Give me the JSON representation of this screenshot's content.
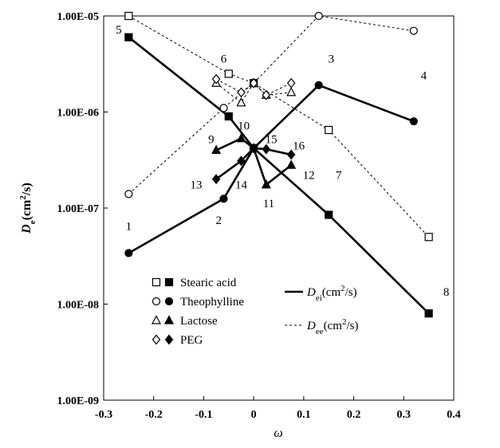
{
  "chart_data": {
    "type": "line",
    "title": "",
    "xlabel": "ω",
    "ylabel": {
      "main": "D",
      "sub": "e",
      "tail": "(cm",
      "sup": "2",
      "end": "/s)"
    },
    "y_scale": "log",
    "xlim": [
      -0.3,
      0.4
    ],
    "ylim": [
      1e-09,
      1e-05
    ],
    "x_ticks": [
      -0.3,
      -0.2,
      -0.1,
      0,
      0.1,
      0.2,
      0.3,
      0.4
    ],
    "x_tick_labels": [
      "-0.3",
      "-0.2",
      "-0.1",
      "0",
      "0.1",
      "0.2",
      "0.3",
      "0.4"
    ],
    "y_ticks": [
      1e-09,
      1e-08,
      1e-07,
      1e-06,
      1e-05
    ],
    "y_tick_labels": [
      "1.00E-09",
      "1.00E-08",
      "1.00E-07",
      "1.00E-06",
      "1.00E-05"
    ],
    "series": [
      {
        "name": "Stearic acid De",
        "material": "Stearic acid",
        "kind": "ee",
        "marker": "square",
        "filled": false,
        "x": [
          -0.25,
          -0.05,
          0,
          0.15,
          0.35
        ],
        "y": [
          1e-05,
          2.5e-06,
          2e-06,
          6.5e-07,
          5e-08
        ]
      },
      {
        "name": "Theophylline De",
        "material": "Theophylline",
        "kind": "ee",
        "marker": "circle",
        "filled": false,
        "x": [
          -0.25,
          -0.06,
          0,
          0.13,
          0.32
        ],
        "y": [
          1.4e-07,
          1.1e-06,
          2e-06,
          1e-05,
          7e-06
        ]
      },
      {
        "name": "Lactose De",
        "material": "Lactose",
        "kind": "ee",
        "marker": "triangle",
        "filled": false,
        "x": [
          -0.075,
          -0.025,
          0,
          0.025,
          0.075
        ],
        "y": [
          2e-06,
          1.25e-06,
          2e-06,
          1.5e-06,
          1.6e-06
        ]
      },
      {
        "name": "PEG De",
        "material": "PEG",
        "kind": "ee",
        "marker": "diamond",
        "filled": false,
        "x": [
          -0.075,
          -0.025,
          0,
          0.025,
          0.075
        ],
        "y": [
          2.2e-06,
          1.6e-06,
          2e-06,
          1.5e-06,
          2e-06
        ]
      },
      {
        "name": "Stearic acid Di",
        "material": "Stearic acid",
        "kind": "ei",
        "marker": "square",
        "filled": true,
        "x": [
          -0.25,
          -0.05,
          0,
          0.15,
          0.35
        ],
        "y": [
          6e-06,
          9e-07,
          4.2e-07,
          8.5e-08,
          8e-09
        ]
      },
      {
        "name": "Theophylline Di",
        "material": "Theophylline",
        "kind": "ei",
        "marker": "circle",
        "filled": true,
        "x": [
          -0.25,
          -0.06,
          0,
          0.13,
          0.32
        ],
        "y": [
          3.4e-08,
          1.25e-07,
          4.2e-07,
          1.9e-06,
          8e-07
        ]
      },
      {
        "name": "Lactose Di",
        "material": "Lactose",
        "kind": "ei",
        "marker": "triangle",
        "filled": true,
        "x": [
          -0.075,
          -0.025,
          0,
          0.025,
          0.075
        ],
        "y": [
          4e-07,
          5.3e-07,
          4.2e-07,
          1.75e-07,
          2.8e-07
        ]
      },
      {
        "name": "PEG Di",
        "material": "PEG",
        "kind": "ei",
        "marker": "diamond",
        "filled": true,
        "x": [
          -0.075,
          -0.025,
          0,
          0.025,
          0.075
        ],
        "y": [
          2e-07,
          3.1e-07,
          4.2e-07,
          4.1e-07,
          3.6e-07
        ]
      }
    ],
    "annotations": [
      {
        "text": "1",
        "x": -0.25,
        "y": 6.5e-08
      },
      {
        "text": "2",
        "x": -0.07,
        "y": 7.5e-08
      },
      {
        "text": "3",
        "x": 0.155,
        "y": 3.6e-06
      },
      {
        "text": "4",
        "x": 0.34,
        "y": 2.4e-06
      },
      {
        "text": "5",
        "x": -0.27,
        "y": 7.2e-06
      },
      {
        "text": "6",
        "x": -0.06,
        "y": 3.6e-06
      },
      {
        "text": "7",
        "x": 0.17,
        "y": 2.2e-07
      },
      {
        "text": "8",
        "x": 0.385,
        "y": 1.35e-08
      },
      {
        "text": "9",
        "x": -0.085,
        "y": 5.2e-07
      },
      {
        "text": "10",
        "x": -0.02,
        "y": 7.2e-07
      },
      {
        "text": "11",
        "x": 0.03,
        "y": 1.12e-07
      },
      {
        "text": "12",
        "x": 0.11,
        "y": 2.2e-07
      },
      {
        "text": "13",
        "x": -0.115,
        "y": 1.75e-07
      },
      {
        "text": "14",
        "x": -0.025,
        "y": 1.75e-07
      },
      {
        "text": "15",
        "x": 0.035,
        "y": 5.2e-07
      },
      {
        "text": "16",
        "x": 0.09,
        "y": 4.5e-07
      }
    ],
    "legend": {
      "placement": "bottom-center",
      "materials": [
        {
          "label": "Stearic acid",
          "marker": "square"
        },
        {
          "label": "Theophylline",
          "marker": "circle"
        },
        {
          "label": "Lactose",
          "marker": "triangle"
        },
        {
          "label": "PEG",
          "marker": "diamond"
        }
      ],
      "lines": [
        {
          "kind": "ei",
          "style": "solid",
          "main": "D",
          "sub": "ei",
          "tail": "(cm",
          "sup": "2",
          "end": "/s)"
        },
        {
          "kind": "ee",
          "style": "dashed",
          "main": "D",
          "sub": "ee",
          "tail": "(cm",
          "sup": "2",
          "end": "/s)"
        }
      ]
    }
  }
}
